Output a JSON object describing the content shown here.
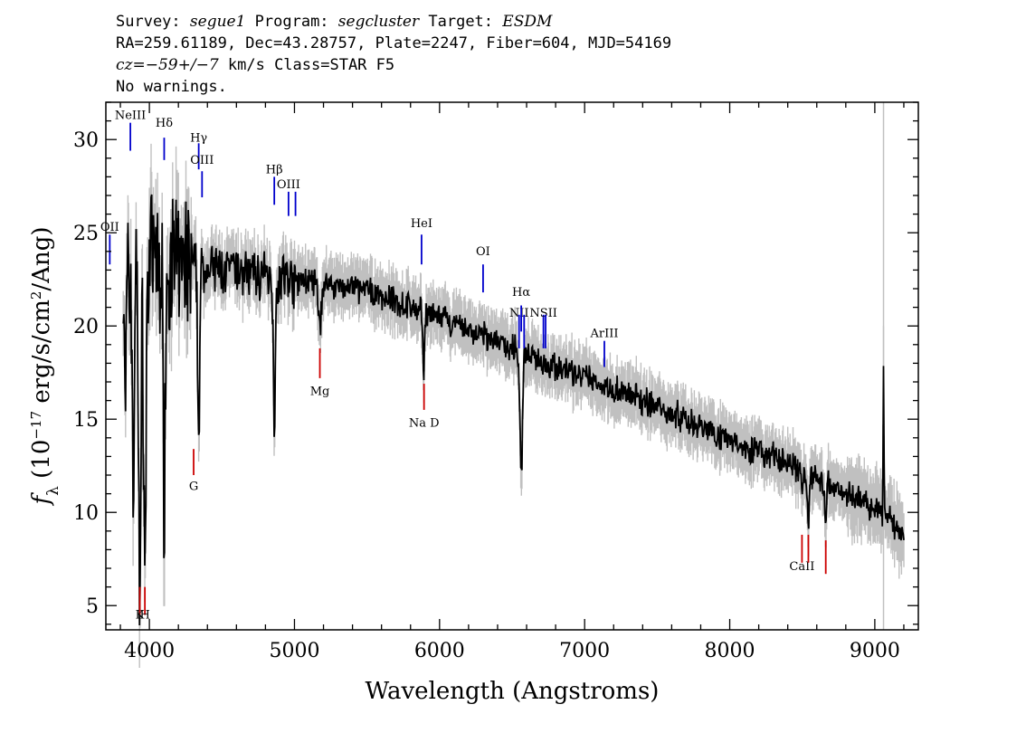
{
  "header": {
    "line1": {
      "survey_label": "Survey:",
      "survey": "segue1",
      "program_label": "Program:",
      "program": "segcluster",
      "target_label": "Target:",
      "target": "ESDM"
    },
    "line2": "RA=259.61189, Dec=43.28757, Plate=2247, Fiber=604, MJD=54169",
    "line3": {
      "cz_label": "cz=",
      "cz_value": "−59+/−7",
      "rest": " km/s Class=STAR F5"
    },
    "line4": "No warnings."
  },
  "chart_data": {
    "type": "line",
    "xlabel": "Wavelength (Angstroms)",
    "ylabel": "f_λ (10^-17 erg/s/cm²/Ang)",
    "xlim": [
      3700,
      9300
    ],
    "ylim": [
      3.7,
      32
    ],
    "xticks": [
      4000,
      5000,
      6000,
      7000,
      8000,
      9000
    ],
    "yticks": [
      5,
      10,
      15,
      20,
      25,
      30
    ],
    "grid": false,
    "colors": {
      "flux": "#000000",
      "error": "#c0c0c0",
      "emission": "#0000cc",
      "absorption": "#cc0000",
      "sky": "#c0c0c0"
    },
    "sky_line_x": 9060,
    "continuum": [
      [
        3820,
        22
      ],
      [
        4000,
        23.3
      ],
      [
        4200,
        23.2
      ],
      [
        4500,
        23.0
      ],
      [
        5000,
        22.5
      ],
      [
        5500,
        21.9
      ],
      [
        6000,
        20.4
      ],
      [
        6500,
        18.8
      ],
      [
        7000,
        17.2
      ],
      [
        7500,
        15.7
      ],
      [
        8000,
        13.9
      ],
      [
        8500,
        12.2
      ],
      [
        9000,
        10.3
      ],
      [
        9200,
        8.8
      ]
    ],
    "absorption_features": [
      {
        "x": 3934,
        "y": 6.5,
        "w": 12
      },
      {
        "x": 3969,
        "y": 7.5,
        "w": 12
      },
      {
        "x": 3889,
        "y": 10.0,
        "w": 8
      },
      {
        "x": 3835,
        "y": 14.0,
        "w": 6
      },
      {
        "x": 3798,
        "y": 16.0,
        "w": 5
      },
      {
        "x": 4102,
        "y": 11.2,
        "w": 10
      },
      {
        "x": 4340,
        "y": 14.5,
        "w": 10
      },
      {
        "x": 4861,
        "y": 15.2,
        "w": 10
      },
      {
        "x": 5175,
        "y": 20.0,
        "w": 15
      },
      {
        "x": 5890,
        "y": 17.5,
        "w": 8
      },
      {
        "x": 6563,
        "y": 12.0,
        "w": 12
      },
      {
        "x": 8498,
        "y": 11.0,
        "w": 8
      },
      {
        "x": 8542,
        "y": 9.5,
        "w": 8
      },
      {
        "x": 8662,
        "y": 9.0,
        "w": 8
      }
    ],
    "spike_features": [
      {
        "x": 9060,
        "y": 17.8,
        "w": 4
      },
      {
        "x": 8300,
        "y": 13.4,
        "w": 6
      }
    ],
    "emission_lines": [
      {
        "label": "OII",
        "x": 3727,
        "label_y": 25.1,
        "ytop": 24.9,
        "ybot": 23.3
      },
      {
        "label": "NeIII",
        "x": 3869,
        "label_y": 31.1,
        "ytop": 30.9,
        "ybot": 29.4
      },
      {
        "label": "Hδ",
        "x": 4102,
        "label_y": 30.7,
        "ytop": 30.1,
        "ybot": 28.9
      },
      {
        "label": "Hγ",
        "x": 4340,
        "label_y": 29.9,
        "ytop": 29.8,
        "ybot": 28.4
      },
      {
        "label": "OIII",
        "x": 4363,
        "label_y": 28.7,
        "ytop": 28.3,
        "ybot": 26.9
      },
      {
        "label": "Hβ",
        "x": 4861,
        "label_y": 28.2,
        "ytop": 28.0,
        "ybot": 26.5
      },
      {
        "label": "OIII",
        "x": 4959,
        "label_y": 27.4,
        "ytop": 27.2,
        "ybot": 25.9
      },
      {
        "label": "",
        "x": 5007,
        "label_y": 27.4,
        "ytop": 27.2,
        "ybot": 25.9
      },
      {
        "label": "HeI",
        "x": 5876,
        "label_y": 25.3,
        "ytop": 24.9,
        "ybot": 23.3
      },
      {
        "label": "OI",
        "x": 6300,
        "label_y": 23.8,
        "ytop": 23.3,
        "ybot": 21.8
      },
      {
        "label": "NII",
        "x": 6548,
        "label_y": 20.5,
        "ytop": 20.6,
        "ybot": 18.8
      },
      {
        "label": "Hα",
        "x": 6563,
        "label_y": 21.6,
        "ytop": 21.1,
        "ybot": 19.7
      },
      {
        "label": "",
        "x": 6583,
        "label_y": 20.5,
        "ytop": 20.6,
        "ybot": 18.8
      },
      {
        "label": "NSII",
        "x": 6716,
        "label_y": 20.5,
        "ytop": 20.6,
        "ybot": 18.8
      },
      {
        "label": "",
        "x": 6731,
        "label_y": 20.5,
        "ytop": 20.6,
        "ybot": 18.8
      },
      {
        "label": "ArIII",
        "x": 7136,
        "label_y": 19.4,
        "ytop": 19.2,
        "ybot": 17.8
      }
    ],
    "absorption_lines": [
      {
        "label": "K",
        "x": 3934,
        "label_y": 4.3,
        "ytop": 6.0,
        "ybot": 4.5
      },
      {
        "label": "H",
        "x": 3969,
        "label_y": 4.3,
        "ytop": 6.0,
        "ybot": 4.5
      },
      {
        "label": "G",
        "x": 4305,
        "label_y": 11.2,
        "ytop": 13.4,
        "ybot": 12.0
      },
      {
        "label": "Mg",
        "x": 5175,
        "label_y": 16.3,
        "ytop": 18.8,
        "ybot": 17.2
      },
      {
        "label": "Na D",
        "x": 5893,
        "label_y": 14.6,
        "ytop": 16.9,
        "ybot": 15.5
      },
      {
        "label": "CaII",
        "x": 8498,
        "label_y": 6.9,
        "ytop": 8.8,
        "ybot": 7.3
      },
      {
        "label": "",
        "x": 8542,
        "label_y": 6.9,
        "ytop": 8.8,
        "ybot": 7.3
      },
      {
        "label": "",
        "x": 8662,
        "label_y": 6.9,
        "ytop": 8.5,
        "ybot": 6.7
      }
    ]
  }
}
